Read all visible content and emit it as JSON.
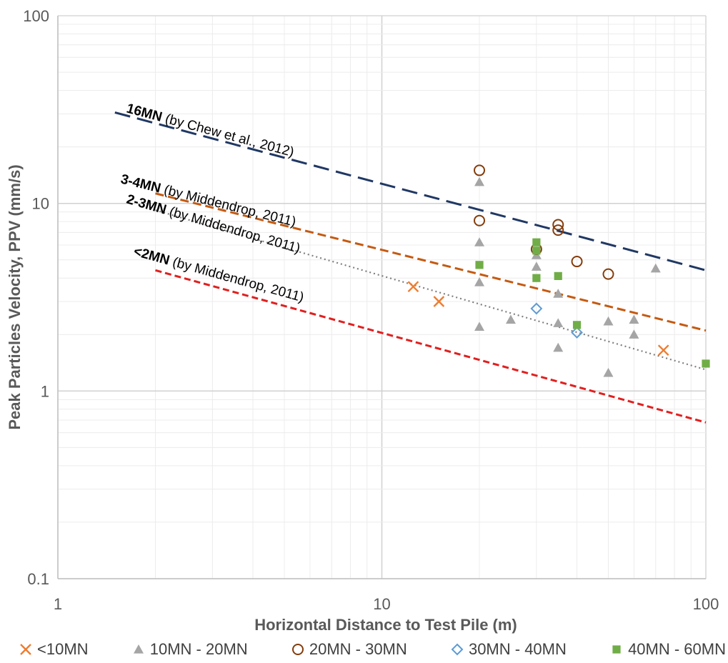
{
  "chart_data": {
    "type": "scatter",
    "title": "",
    "xlabel": "Horizontal Distance to Test Pile (m)",
    "ylabel": "Peak Particles Velocity, PPV (mm/s)",
    "xscale": "log",
    "yscale": "log",
    "xlim": [
      1,
      100
    ],
    "ylim": [
      0.1,
      100
    ],
    "x_ticks": [
      "1",
      "10",
      "100"
    ],
    "y_ticks": [
      "0.1",
      "1",
      "10",
      "100"
    ],
    "grid": true,
    "legend_position": "bottom",
    "series": [
      {
        "name": "<10MN",
        "marker": "x",
        "color": "#ED7D31",
        "points": [
          [
            12.5,
            3.6
          ],
          [
            15,
            3.0
          ],
          [
            74,
            1.65
          ]
        ]
      },
      {
        "name": "10MN - 20MN",
        "marker": "triangle",
        "color": "#A5A5A5",
        "points": [
          [
            20,
            13
          ],
          [
            20,
            6.2
          ],
          [
            20,
            3.8
          ],
          [
            20,
            2.2
          ],
          [
            25,
            2.4
          ],
          [
            30,
            5.3
          ],
          [
            30,
            4.6
          ],
          [
            35,
            3.3
          ],
          [
            35,
            2.3
          ],
          [
            35,
            1.7
          ],
          [
            50,
            2.35
          ],
          [
            50,
            1.25
          ],
          [
            60,
            2.4
          ],
          [
            60,
            2.0
          ],
          [
            70,
            4.5
          ]
        ]
      },
      {
        "name": "20MN - 30MN",
        "marker": "circle",
        "color": "#843C0C",
        "points": [
          [
            20,
            15
          ],
          [
            20,
            8.1
          ],
          [
            30,
            5.7
          ],
          [
            35,
            7.7
          ],
          [
            35,
            7.2
          ],
          [
            40,
            4.9
          ],
          [
            50,
            4.2
          ]
        ]
      },
      {
        "name": "30MN - 40MN",
        "marker": "diamond",
        "color": "#5B9BD5",
        "points": [
          [
            30,
            2.75
          ],
          [
            40,
            2.05
          ]
        ]
      },
      {
        "name": "40MN - 60MN",
        "marker": "square",
        "color": "#70AD47",
        "points": [
          [
            20,
            4.7
          ],
          [
            30,
            6.2
          ],
          [
            30,
            5.6
          ],
          [
            30,
            4.0
          ],
          [
            35,
            4.1
          ],
          [
            40,
            2.25
          ],
          [
            100,
            1.4
          ]
        ]
      }
    ],
    "reference_lines": [
      {
        "label_bold": "16MN",
        "label_rest": " (by Chew et al., 2012)",
        "color": "#203864",
        "dash": "long-dash",
        "points": [
          [
            1.5,
            30.5
          ],
          [
            100,
            4.4
          ]
        ]
      },
      {
        "label_bold": "3-4MN",
        "label_rest": " (by Middendrop, 2011)",
        "color": "#C55A11",
        "dash": "dash",
        "points": [
          [
            2,
            11.3
          ],
          [
            100,
            2.1
          ]
        ]
      },
      {
        "label_bold": "2-3MN",
        "label_rest": " (by Middendrop, 2011)",
        "color": "#7F7F7F",
        "dash": "dot",
        "points": [
          [
            2,
            9.2
          ],
          [
            100,
            1.3
          ]
        ]
      },
      {
        "label_bold": "<2MN",
        "label_rest": " (by Middendrop, 2011)",
        "color": "#E0201F",
        "dash": "short-dash",
        "points": [
          [
            2,
            4.4
          ],
          [
            100,
            0.68
          ]
        ]
      }
    ]
  }
}
